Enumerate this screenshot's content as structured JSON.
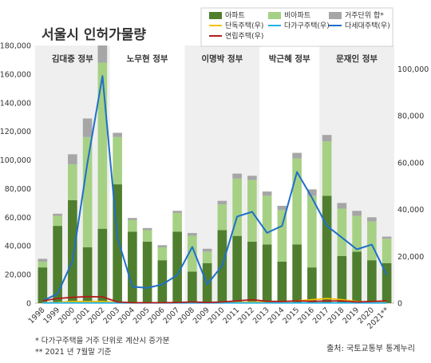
{
  "chart_data": {
    "type": "bar",
    "title": "서울시 인허가물량",
    "categories": [
      "1998",
      "1999",
      "2000",
      "2001",
      "2002",
      "2003",
      "2004",
      "2005",
      "2006",
      "2007",
      "2008",
      "2009",
      "2010",
      "2011",
      "2012",
      "2013",
      "2014",
      "2015",
      "2016",
      "2017",
      "2018",
      "2019",
      "2020",
      "2021**"
    ],
    "left_axis": {
      "ylim": [
        0,
        180000
      ],
      "ticks": [
        "0",
        "20,000",
        "40,000",
        "60,000",
        "80,000",
        "100,000",
        "120,000",
        "140,000",
        "160,000",
        "180,000"
      ]
    },
    "right_axis": {
      "ylim": [
        0,
        110000
      ],
      "ticks": [
        "0",
        "20,000",
        "40,000",
        "60,000",
        "80,000",
        "100,000"
      ]
    },
    "series": [
      {
        "name": "아파트",
        "kind": "bar",
        "axis": "left",
        "color": "#4f7f2e",
        "values": [
          25000,
          54000,
          72000,
          39000,
          52000,
          83000,
          50000,
          43000,
          30000,
          50000,
          22000,
          28000,
          51000,
          47000,
          43000,
          41000,
          29000,
          41000,
          25000,
          75000,
          33000,
          36000,
          30000,
          28000
        ]
      },
      {
        "name": "비아파트",
        "kind": "bar",
        "axis": "left",
        "color": "#a6d184",
        "values": [
          4000,
          7000,
          25000,
          77000,
          116000,
          33000,
          8000,
          8000,
          9000,
          13000,
          25000,
          8000,
          18000,
          40000,
          43000,
          34000,
          36000,
          60000,
          50000,
          38000,
          33000,
          25000,
          27000,
          17000
        ]
      },
      {
        "name": "거주단위 합*",
        "kind": "bar",
        "axis": "left",
        "color": "#a6a6a6",
        "values": [
          2000,
          1500,
          7000,
          13000,
          12000,
          3000,
          1500,
          1500,
          1500,
          1500,
          2000,
          2000,
          2500,
          3500,
          3000,
          3000,
          3000,
          4000,
          4500,
          4500,
          4000,
          3500,
          3000,
          1500
        ]
      },
      {
        "name": "단독주택(우)",
        "kind": "line",
        "axis": "right",
        "color": "#f2c200",
        "values": [
          200,
          300,
          700,
          600,
          700,
          300,
          200,
          200,
          200,
          200,
          200,
          200,
          200,
          300,
          400,
          500,
          600,
          1000,
          1500,
          2000,
          1500,
          700,
          300,
          200
        ]
      },
      {
        "name": "다가구주택(우)",
        "kind": "line",
        "axis": "right",
        "color": "#22b2e6",
        "values": [
          100,
          100,
          100,
          100,
          100,
          100,
          100,
          100,
          100,
          100,
          100,
          100,
          100,
          100,
          100,
          100,
          100,
          100,
          100,
          100,
          100,
          100,
          100,
          100
        ]
      },
      {
        "name": "다세대주택(우)",
        "kind": "line",
        "axis": "right",
        "color": "#1f6fc8",
        "values": [
          1000,
          4000,
          18000,
          60000,
          97000,
          28000,
          7000,
          6500,
          8000,
          12000,
          24000,
          8000,
          16000,
          37000,
          39000,
          30000,
          33000,
          56000,
          45000,
          33000,
          28000,
          23000,
          25000,
          12000
        ]
      },
      {
        "name": "연립주택(우)",
        "kind": "line",
        "axis": "right",
        "color": "#b01c1c",
        "values": [
          1000,
          2000,
          2500,
          2800,
          2700,
          500,
          200,
          200,
          200,
          300,
          500,
          300,
          500,
          1000,
          1500,
          800,
          700,
          1000,
          800,
          900,
          1000,
          500,
          700,
          1000
        ]
      }
    ],
    "eras": [
      {
        "label": "김대중 정부",
        "from": 0,
        "to": 4
      },
      {
        "label": "노무현 정부",
        "from": 5,
        "to": 9
      },
      {
        "label": "이명박 정부",
        "from": 10,
        "to": 14
      },
      {
        "label": "박근혜 정부",
        "from": 15,
        "to": 18
      },
      {
        "label": "문재인 정부",
        "from": 19,
        "to": 23
      }
    ],
    "notes": [
      "*  다가구주택을 거주 단위로 계산시 증가분",
      "** 2021 년 7월말 기준"
    ],
    "source": "출처: 국토교통부 통계누리",
    "grid": false,
    "legend_position": "top-right"
  }
}
